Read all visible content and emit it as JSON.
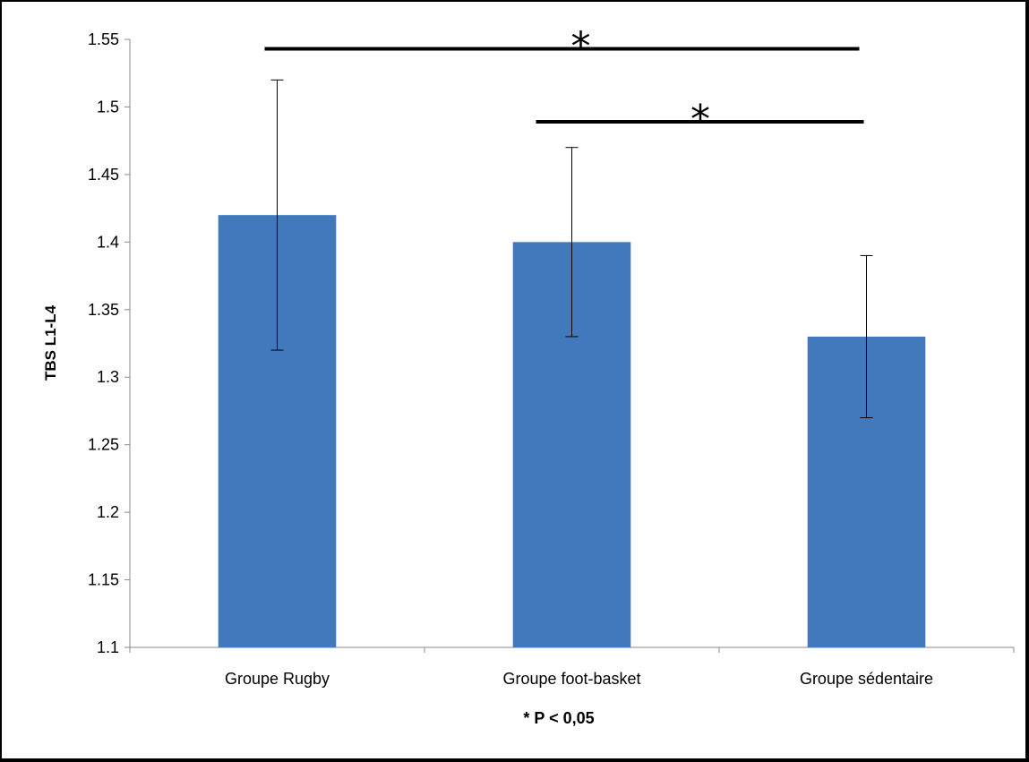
{
  "chart_data": {
    "type": "bar",
    "categories": [
      "Groupe Rugby",
      "Groupe foot-basket",
      "Groupe sédentaire"
    ],
    "values": [
      1.42,
      1.4,
      1.33
    ],
    "error": [
      0.1,
      0.07,
      0.06
    ],
    "ylabel": "TBS L1-L4",
    "xlabel": "",
    "ylim": [
      1.1,
      1.55
    ],
    "yticks": [
      "1.55",
      "1.5",
      "1.45",
      "1.4",
      "1.35",
      "1.3",
      "1.25",
      "1.2",
      "1.15",
      "1.1"
    ],
    "bar_color": "#4279bd",
    "grid": false,
    "annotations": [
      {
        "label": "*",
        "from": "Groupe Rugby",
        "to": "Groupe sédentaire",
        "y": 1.543
      },
      {
        "label": "*",
        "from": "Groupe foot-basket",
        "to": "Groupe sédentaire",
        "y": 1.489
      }
    ],
    "note": "* P < 0,05"
  }
}
